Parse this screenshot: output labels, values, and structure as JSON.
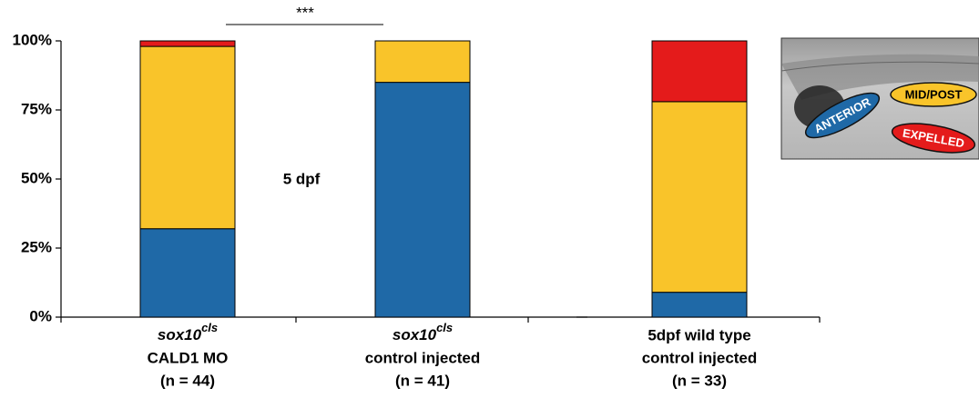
{
  "chart_data": [
    {
      "type": "stacked_bar",
      "categories": [
        {
          "genotype": "sox10",
          "superscript": "cls",
          "lines": [
            "CALD1 MO",
            "(n = 44)"
          ]
        },
        {
          "genotype": "sox10",
          "superscript": "cls",
          "lines": [
            "control injected",
            "(n = 41)"
          ]
        }
      ],
      "series": [
        {
          "color": "#1f69a7",
          "values": [
            32,
            85
          ]
        },
        {
          "color": "#f9c42a",
          "values": [
            66,
            15
          ]
        },
        {
          "color": "#e41b1b",
          "values": [
            2,
            0
          ]
        }
      ],
      "ylim": [
        0,
        100
      ],
      "yticks": [
        {
          "value": 0,
          "label": "0%"
        },
        {
          "value": 25,
          "label": "25%"
        },
        {
          "value": 50,
          "label": "50%"
        },
        {
          "value": 75,
          "label": "75%"
        },
        {
          "value": 100,
          "label": "100%"
        }
      ],
      "annotations": {
        "significance": "***",
        "stage": "5 dpf"
      }
    },
    {
      "type": "stacked_bar",
      "categories": [
        {
          "lines": [
            "5dpf wild type",
            "control injected",
            "(n = 33)"
          ]
        }
      ],
      "series": [
        {
          "name": "ANTERIOR",
          "color": "#1f69a7",
          "values": [
            9
          ]
        },
        {
          "name": "MID/POST",
          "color": "#f9c42a",
          "values": [
            69
          ]
        },
        {
          "name": "EXPELLED",
          "color": "#e41b1b",
          "values": [
            22
          ]
        }
      ],
      "ylim": [
        0,
        100
      ]
    }
  ]
}
